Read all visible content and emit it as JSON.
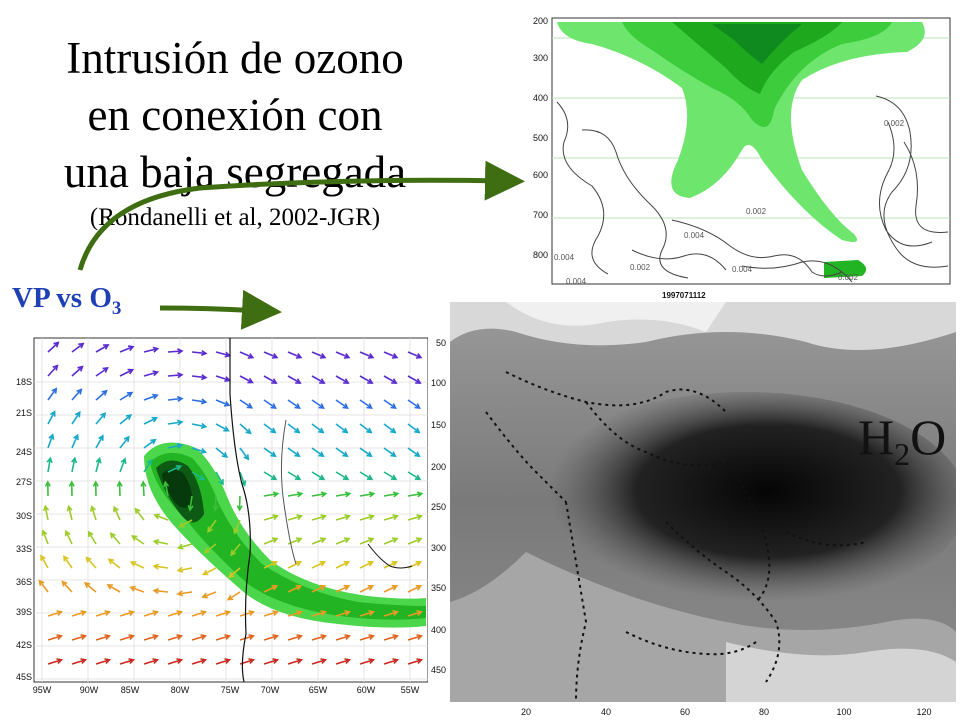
{
  "title": {
    "lines": [
      "Intrusión de ozono",
      "en conexión con",
      "una baja segregada"
    ],
    "citation": "(Rondanelli et al, 2002-JGR)"
  },
  "vp_label": {
    "text": "VP vs O",
    "subscript": "3"
  },
  "h2o_label": {
    "main": "H",
    "subscript": "2",
    "tail": "O"
  },
  "cross_section": {
    "y_ticks": [
      "200",
      "300",
      "400",
      "500",
      "600",
      "700",
      "800"
    ],
    "contour_labels": [
      "0.002",
      "0.002",
      "0.004",
      "0.004",
      "0.004",
      "0.002",
      "0.004",
      "0.002"
    ],
    "timestamp": "1997071112"
  },
  "wind_map": {
    "lat_ticks": [
      "18S",
      "21S",
      "24S",
      "27S",
      "30S",
      "33S",
      "36S",
      "39S",
      "42S",
      "45S"
    ],
    "lon_ticks": [
      "95W",
      "90W",
      "85W",
      "80W",
      "75W",
      "70W",
      "65W",
      "60W",
      "55W"
    ]
  },
  "satellite": {
    "y_ticks": [
      "50",
      "100",
      "150",
      "200",
      "250",
      "300",
      "350",
      "400",
      "450"
    ],
    "x_ticks": [
      "20",
      "40",
      "60",
      "80",
      "100",
      "120"
    ]
  },
  "colors": {
    "accent_blue": "#1f3fb5",
    "arrow_green": "#3f6d12",
    "ozone_green": "#22b422"
  }
}
